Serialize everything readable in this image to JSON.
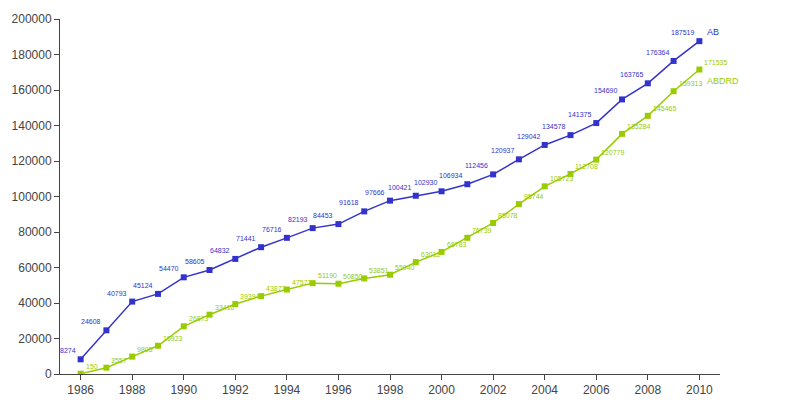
{
  "chart_data": {
    "type": "line",
    "x": [
      1986,
      1987,
      1988,
      1989,
      1990,
      1991,
      1992,
      1993,
      1994,
      1995,
      1996,
      1997,
      1998,
      1999,
      2000,
      2001,
      2002,
      2003,
      2004,
      2005,
      2006,
      2007,
      2008,
      2009,
      2010
    ],
    "series": [
      {
        "name": "AB",
        "color": "#3333cc",
        "values": [
          8274,
          24608,
          40793,
          45124,
          54470,
          58605,
          64832,
          71441,
          76716,
          82193,
          84453,
          91618,
          97666,
          100421,
          102930,
          106934,
          112456,
          120937,
          129042,
          134578,
          141375,
          154690,
          163765,
          176364,
          187519
        ]
      },
      {
        "name": "ABDRD",
        "color": "#99cc00",
        "values": [
          150,
          3557,
          9805,
          15923,
          26873,
          33416,
          39394,
          43877,
          47571,
          51190,
          50850,
          53851,
          55940,
          63012,
          68783,
          76739,
          85078,
          95744,
          105723,
          112708,
          120779,
          135284,
          145465,
          159313,
          171535
        ]
      }
    ],
    "xlim": [
      1985.2,
      2010.8
    ],
    "xticks": [
      1986,
      1988,
      1990,
      1992,
      1994,
      1996,
      1998,
      2000,
      2002,
      2004,
      2006,
      2008,
      2010
    ],
    "ylim": [
      0,
      200000
    ],
    "yticks": [
      0,
      20000,
      40000,
      60000,
      80000,
      100000,
      120000,
      140000,
      160000,
      180000,
      200000
    ],
    "grid": false,
    "data_labels": true,
    "marker": "square"
  }
}
